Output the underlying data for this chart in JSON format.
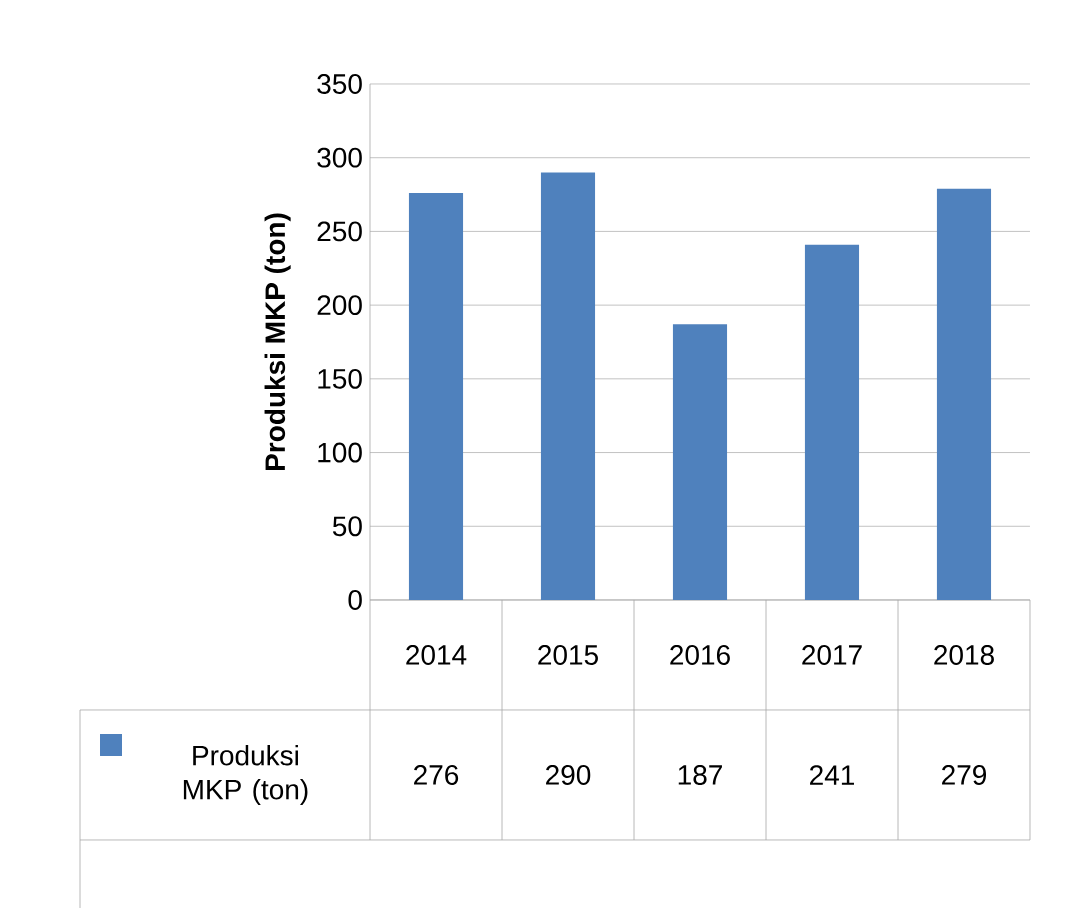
{
  "chart_data": {
    "type": "bar",
    "ylabel": "Produksi MKP (ton)",
    "categories": [
      "2014",
      "2015",
      "2016",
      "2017",
      "2018"
    ],
    "series": [
      {
        "name": "Produksi MKP (ton)",
        "color": "#4f81bd",
        "values": [
          276,
          290,
          187,
          241,
          279
        ]
      }
    ],
    "ylim": [
      0,
      350
    ],
    "yticks": [
      0,
      50,
      100,
      150,
      200,
      250,
      300,
      350
    ],
    "grid": "y",
    "legend": "bottom",
    "data_labels": true
  }
}
